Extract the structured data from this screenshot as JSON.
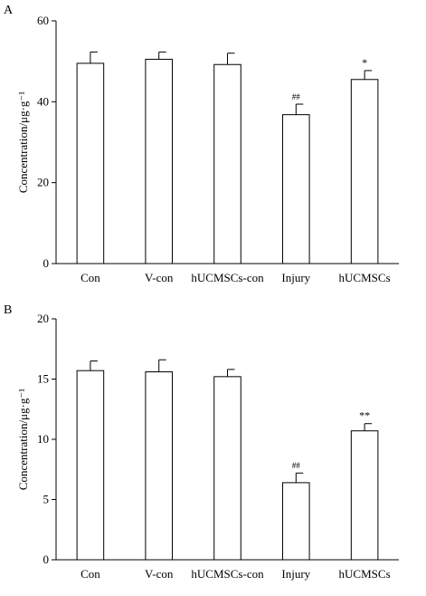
{
  "chart_data": [
    {
      "type": "bar",
      "panel_label": "A",
      "categories": [
        "Con",
        "V-con",
        "hUCMSCs-con",
        "Injury",
        "hUCMSCs"
      ],
      "values": [
        49.5,
        50.5,
        49.2,
        36.8,
        45.5
      ],
      "errors": [
        2.8,
        1.8,
        2.8,
        2.6,
        2.2
      ],
      "annotations": [
        "",
        "",
        "",
        "##",
        "*"
      ],
      "ylabel": "Concentration/μg·g⁻¹",
      "ylim": [
        0,
        60
      ],
      "yticks": [
        0,
        20,
        40,
        60
      ],
      "grid": false
    },
    {
      "type": "bar",
      "panel_label": "B",
      "categories": [
        "Con",
        "V-con",
        "hUCMSCs-con",
        "Injury",
        "hUCMSCs"
      ],
      "values": [
        15.7,
        15.6,
        15.2,
        6.4,
        10.7
      ],
      "errors": [
        0.8,
        1.0,
        0.6,
        0.8,
        0.6
      ],
      "annotations": [
        "",
        "",
        "",
        "##",
        "**"
      ],
      "ylabel": "Concentration/μg·g⁻¹",
      "ylim": [
        0,
        20
      ],
      "yticks": [
        0,
        5,
        10,
        15,
        20
      ],
      "grid": false
    }
  ]
}
